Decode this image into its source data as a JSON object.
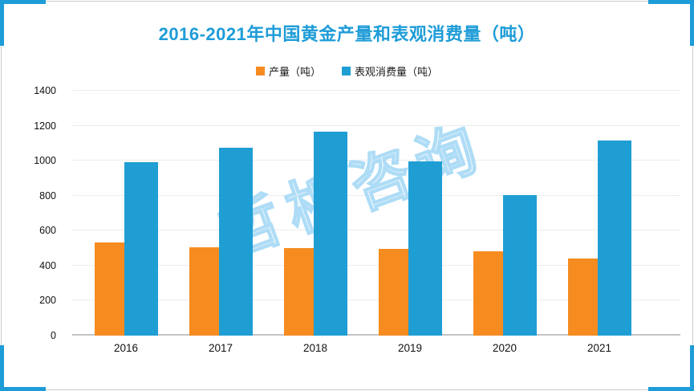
{
  "title": "2016-2021年中国黄金产量和表观消费量（吨）",
  "watermark": {
    "text": "哲析咨询"
  },
  "colors": {
    "accent": "#1E9CD7",
    "title": "#1E9CD8",
    "production_orange": "#F68C20",
    "consumption_blue": "#1F9ED4",
    "gridline": "#EDEDED",
    "axis_line": "#C4C4C4"
  },
  "chart_data": {
    "type": "bar",
    "title": "2016-2021年中国黄金产量和表观消费量（吨）",
    "categories": [
      "2016",
      "2017",
      "2018",
      "2019",
      "2020",
      "2021"
    ],
    "series": [
      {
        "name": "产量（吨）",
        "color": "#F68C20",
        "values": [
          533,
          507,
          501,
          496,
          480,
          443
        ]
      },
      {
        "name": "表观消费量（吨）",
        "color": "#1F9ED4",
        "values": [
          990,
          1075,
          1165,
          995,
          805,
          1115
        ]
      }
    ],
    "xlabel": "",
    "ylabel": "",
    "ylim": [
      0,
      1400
    ],
    "yticks": [
      0,
      200,
      400,
      600,
      800,
      1000,
      1200,
      1400
    ],
    "grid": true,
    "legend_position": "top"
  }
}
